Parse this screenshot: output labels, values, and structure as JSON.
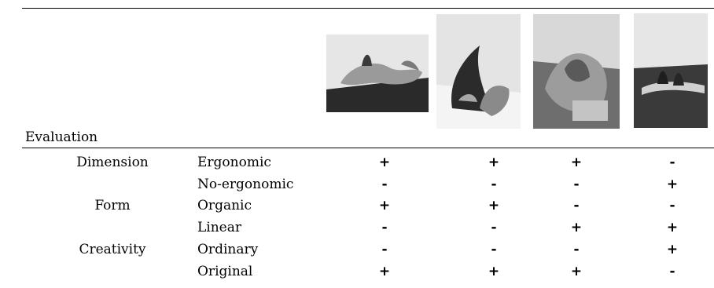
{
  "header": {
    "label": "Evaluation"
  },
  "photos": [
    {
      "name": "sculpture-photo-1",
      "icon": "photo-icon"
    },
    {
      "name": "sculpture-photo-2",
      "icon": "photo-icon"
    },
    {
      "name": "sculpture-photo-3",
      "icon": "photo-icon"
    },
    {
      "name": "sculpture-photo-4",
      "icon": "photo-icon"
    }
  ],
  "rows": [
    {
      "dimension": "Dimension",
      "criterion": "Ergonomic",
      "marks": [
        "+",
        "+",
        "+",
        "-"
      ]
    },
    {
      "dimension": "",
      "criterion": "No-ergonomic",
      "marks": [
        "-",
        "-",
        "-",
        "+"
      ]
    },
    {
      "dimension": "Form",
      "criterion": "Organic",
      "marks": [
        "+",
        "+",
        "-",
        "-"
      ]
    },
    {
      "dimension": "",
      "criterion": "Linear",
      "marks": [
        "-",
        "-",
        "+",
        "+"
      ]
    },
    {
      "dimension": "Creativity",
      "criterion": "Ordinary",
      "marks": [
        "-",
        "-",
        "-",
        "+"
      ]
    },
    {
      "dimension": "",
      "criterion": "Original",
      "marks": [
        "+",
        "+",
        "+",
        "-"
      ]
    }
  ]
}
